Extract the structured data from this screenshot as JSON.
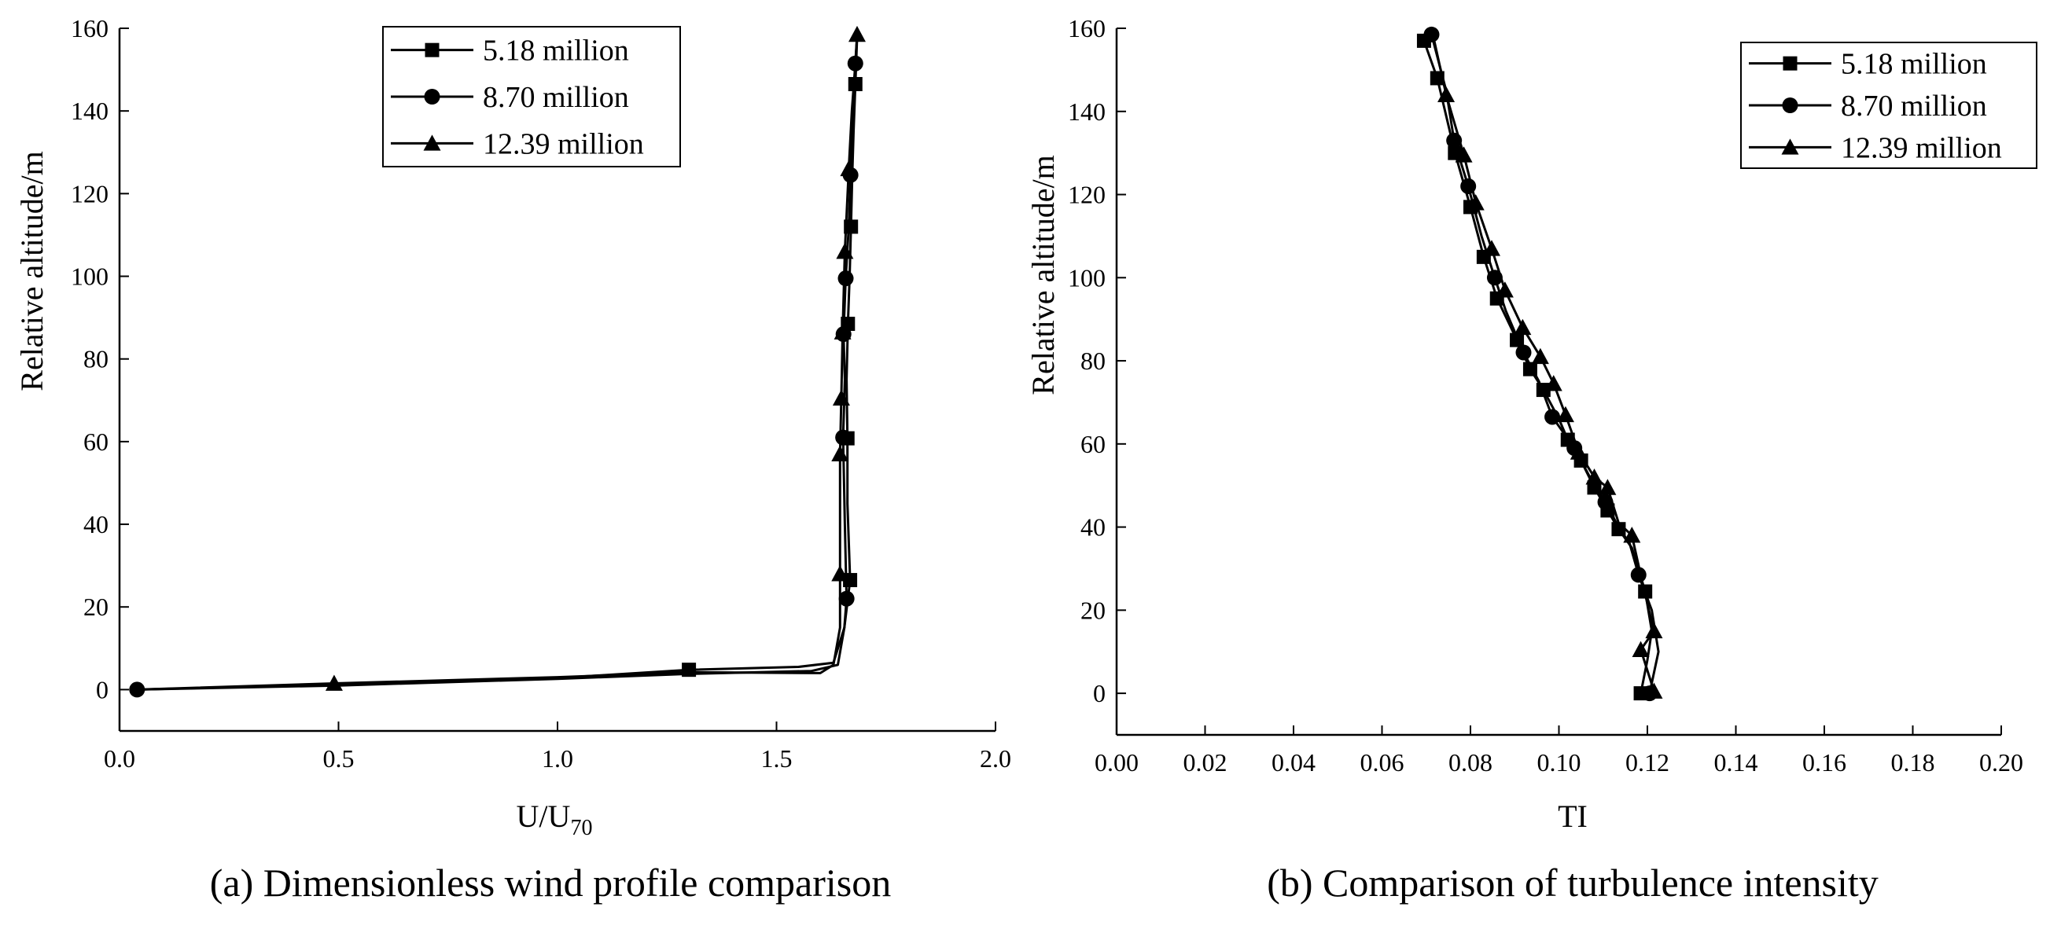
{
  "chart_data": [
    {
      "type": "line",
      "caption": "(a) Dimensionless wind profile comparison",
      "xlabel": "U/U",
      "xlabel_subscript": "70",
      "ylabel": "Relative altitude/m",
      "xlim": [
        0.0,
        2.0
      ],
      "ylim": [
        -10,
        160
      ],
      "x_ticks": [
        0.0,
        0.5,
        1.0,
        1.5,
        2.0
      ],
      "x_tick_labels": [
        "0.0",
        "0.5",
        "1.0",
        "1.5",
        "2.0"
      ],
      "y_ticks": [
        0,
        20,
        40,
        60,
        80,
        100,
        120,
        140,
        160
      ],
      "y_tick_labels": [
        "0",
        "20",
        "40",
        "60",
        "80",
        "100",
        "120",
        "140",
        "160"
      ],
      "legend_position": "top-center",
      "series": [
        {
          "name": "5.18 million",
          "marker": "square",
          "points": [
            [
              0.04,
              0.0
            ],
            [
              0.5,
              1.2
            ],
            [
              1.0,
              2.8
            ],
            [
              1.3,
              4.8
            ],
            [
              1.55,
              5.5
            ],
            [
              1.63,
              6.5
            ],
            [
              1.655,
              15
            ],
            [
              1.668,
              26.5
            ],
            [
              1.662,
              45
            ],
            [
              1.662,
              60.8
            ],
            [
              1.66,
              75
            ],
            [
              1.663,
              88.5
            ],
            [
              1.667,
              100
            ],
            [
              1.67,
              112
            ],
            [
              1.673,
              125
            ],
            [
              1.676,
              135
            ],
            [
              1.68,
              146.5
            ],
            [
              1.684,
              158
            ]
          ],
          "marker_points": [
            [
              1.3,
              4.8
            ],
            [
              1.668,
              26.5
            ],
            [
              1.662,
              60.8
            ],
            [
              1.663,
              88.5
            ],
            [
              1.67,
              112
            ],
            [
              1.68,
              146.5
            ]
          ]
        },
        {
          "name": "8.70 million",
          "marker": "circle",
          "points": [
            [
              0.04,
              0.0
            ],
            [
              0.5,
              1.0
            ],
            [
              1.0,
              2.6
            ],
            [
              1.3,
              3.8
            ],
            [
              1.58,
              4.5
            ],
            [
              1.64,
              6.0
            ],
            [
              1.655,
              15
            ],
            [
              1.66,
              22
            ],
            [
              1.656,
              40
            ],
            [
              1.652,
              61
            ],
            [
              1.656,
              75
            ],
            [
              1.653,
              86
            ],
            [
              1.658,
              99.5
            ],
            [
              1.665,
              112
            ],
            [
              1.669,
              124.5
            ],
            [
              1.674,
              138
            ],
            [
              1.68,
              151.5
            ],
            [
              1.684,
              158
            ]
          ],
          "marker_points": [
            [
              0.04,
              0.0
            ],
            [
              1.66,
              22
            ],
            [
              1.652,
              61
            ],
            [
              1.653,
              86
            ],
            [
              1.658,
              99.5
            ],
            [
              1.669,
              124.5
            ],
            [
              1.68,
              151.5
            ]
          ]
        },
        {
          "name": "12.39 million",
          "marker": "triangle",
          "points": [
            [
              0.04,
              0.0
            ],
            [
              0.49,
              1.5
            ],
            [
              1.0,
              3.0
            ],
            [
              1.3,
              4.2
            ],
            [
              1.6,
              4.0
            ],
            [
              1.63,
              6.0
            ],
            [
              1.645,
              15
            ],
            [
              1.645,
              28
            ],
            [
              1.645,
              45
            ],
            [
              1.645,
              57
            ],
            [
              1.648,
              70.5
            ],
            [
              1.651,
              86.5
            ],
            [
              1.656,
              106
            ],
            [
              1.665,
              126
            ],
            [
              1.672,
              140
            ],
            [
              1.679,
              150
            ],
            [
              1.684,
              158.5
            ]
          ],
          "marker_points": [
            [
              0.49,
              1.5
            ],
            [
              1.645,
              28
            ],
            [
              1.645,
              57
            ],
            [
              1.648,
              70.5
            ],
            [
              1.651,
              86.5
            ],
            [
              1.656,
              106
            ],
            [
              1.665,
              126
            ],
            [
              1.684,
              158.5
            ]
          ]
        }
      ]
    },
    {
      "type": "line",
      "caption": "(b) Comparison of turbulence intensity",
      "xlabel": "TI",
      "ylabel": "Relative altitude/m",
      "xlim": [
        0.0,
        0.2
      ],
      "ylim": [
        -10,
        160
      ],
      "x_ticks": [
        0.0,
        0.02,
        0.04,
        0.06,
        0.08,
        0.1,
        0.12,
        0.14,
        0.16,
        0.18,
        0.2
      ],
      "x_tick_labels": [
        "0.00",
        "0.02",
        "0.04",
        "0.06",
        "0.08",
        "0.10",
        "0.12",
        "0.14",
        "0.16",
        "0.18",
        "0.20"
      ],
      "y_ticks": [
        0,
        20,
        40,
        60,
        80,
        100,
        120,
        140,
        160
      ],
      "y_tick_labels": [
        "0",
        "20",
        "40",
        "60",
        "80",
        "100",
        "120",
        "140",
        "160"
      ],
      "legend_position": "top-right",
      "series": [
        {
          "name": "5.18 million",
          "marker": "square",
          "points": [
            [
              0.0695,
              157
            ],
            [
              0.0725,
              148
            ],
            [
              0.0765,
              130
            ],
            [
              0.08,
              117
            ],
            [
              0.083,
              105
            ],
            [
              0.086,
              95
            ],
            [
              0.0905,
              85
            ],
            [
              0.0935,
              78
            ],
            [
              0.0965,
              73
            ],
            [
              0.1,
              66
            ],
            [
              0.102,
              61
            ],
            [
              0.105,
              56
            ],
            [
              0.108,
              49.5
            ],
            [
              0.111,
              44
            ],
            [
              0.1135,
              39.5
            ],
            [
              0.1165,
              35
            ],
            [
              0.1185,
              28
            ],
            [
              0.1195,
              24.5
            ],
            [
              0.121,
              15
            ],
            [
              0.12,
              8
            ],
            [
              0.1185,
              0
            ]
          ],
          "marker_points": [
            [
              0.0695,
              157
            ],
            [
              0.0725,
              148
            ],
            [
              0.0765,
              130
            ],
            [
              0.08,
              117
            ],
            [
              0.083,
              105
            ],
            [
              0.086,
              95
            ],
            [
              0.0905,
              85
            ],
            [
              0.0935,
              78
            ],
            [
              0.0965,
              73
            ],
            [
              0.102,
              61
            ],
            [
              0.105,
              56
            ],
            [
              0.108,
              49.5
            ],
            [
              0.111,
              44
            ],
            [
              0.1135,
              39.5
            ],
            [
              0.1195,
              24.5
            ],
            [
              0.1185,
              0
            ]
          ]
        },
        {
          "name": "8.70 million",
          "marker": "circle",
          "points": [
            [
              0.0712,
              158.5
            ],
            [
              0.0745,
              145
            ],
            [
              0.0763,
              133
            ],
            [
              0.0795,
              122
            ],
            [
              0.0825,
              110
            ],
            [
              0.0855,
              100
            ],
            [
              0.088,
              92
            ],
            [
              0.092,
              82
            ],
            [
              0.0955,
              75
            ],
            [
              0.0985,
              66.5
            ],
            [
              0.1035,
              59
            ],
            [
              0.107,
              52
            ],
            [
              0.1105,
              46
            ],
            [
              0.1135,
              40
            ],
            [
              0.116,
              36
            ],
            [
              0.118,
              28.5
            ],
            [
              0.121,
              20
            ],
            [
              0.1225,
              10
            ],
            [
              0.1205,
              0
            ]
          ],
          "marker_points": [
            [
              0.0712,
              158.5
            ],
            [
              0.0763,
              133
            ],
            [
              0.0795,
              122
            ],
            [
              0.0855,
              100
            ],
            [
              0.092,
              82
            ],
            [
              0.0985,
              66.5
            ],
            [
              0.1035,
              59
            ],
            [
              0.1105,
              46
            ],
            [
              0.118,
              28.5
            ],
            [
              0.1205,
              0
            ]
          ]
        },
        {
          "name": "12.39 million",
          "marker": "triangle",
          "points": [
            [
              0.0715,
              158.5
            ],
            [
              0.0745,
              144
            ],
            [
              0.0785,
              129.5
            ],
            [
              0.0812,
              118
            ],
            [
              0.0848,
              107
            ],
            [
              0.0878,
              97
            ],
            [
              0.0918,
              88
            ],
            [
              0.0958,
              81
            ],
            [
              0.0988,
              74.5
            ],
            [
              0.1015,
              67
            ],
            [
              0.1045,
              58
            ],
            [
              0.108,
              52
            ],
            [
              0.111,
              49.5
            ],
            [
              0.1135,
              41
            ],
            [
              0.1165,
              38
            ],
            [
              0.119,
              26
            ],
            [
              0.1215,
              15
            ],
            [
              0.1185,
              10.5
            ],
            [
              0.1215,
              0.5
            ]
          ],
          "marker_points": [
            [
              0.0745,
              144
            ],
            [
              0.0785,
              129.5
            ],
            [
              0.0812,
              118
            ],
            [
              0.0848,
              107
            ],
            [
              0.0878,
              97
            ],
            [
              0.0918,
              88
            ],
            [
              0.0958,
              81
            ],
            [
              0.0988,
              74.5
            ],
            [
              0.1015,
              67
            ],
            [
              0.1045,
              58
            ],
            [
              0.108,
              52
            ],
            [
              0.111,
              49.5
            ],
            [
              0.1165,
              38
            ],
            [
              0.1215,
              15
            ],
            [
              0.1185,
              10.5
            ],
            [
              0.1215,
              0.5
            ]
          ]
        }
      ]
    }
  ]
}
